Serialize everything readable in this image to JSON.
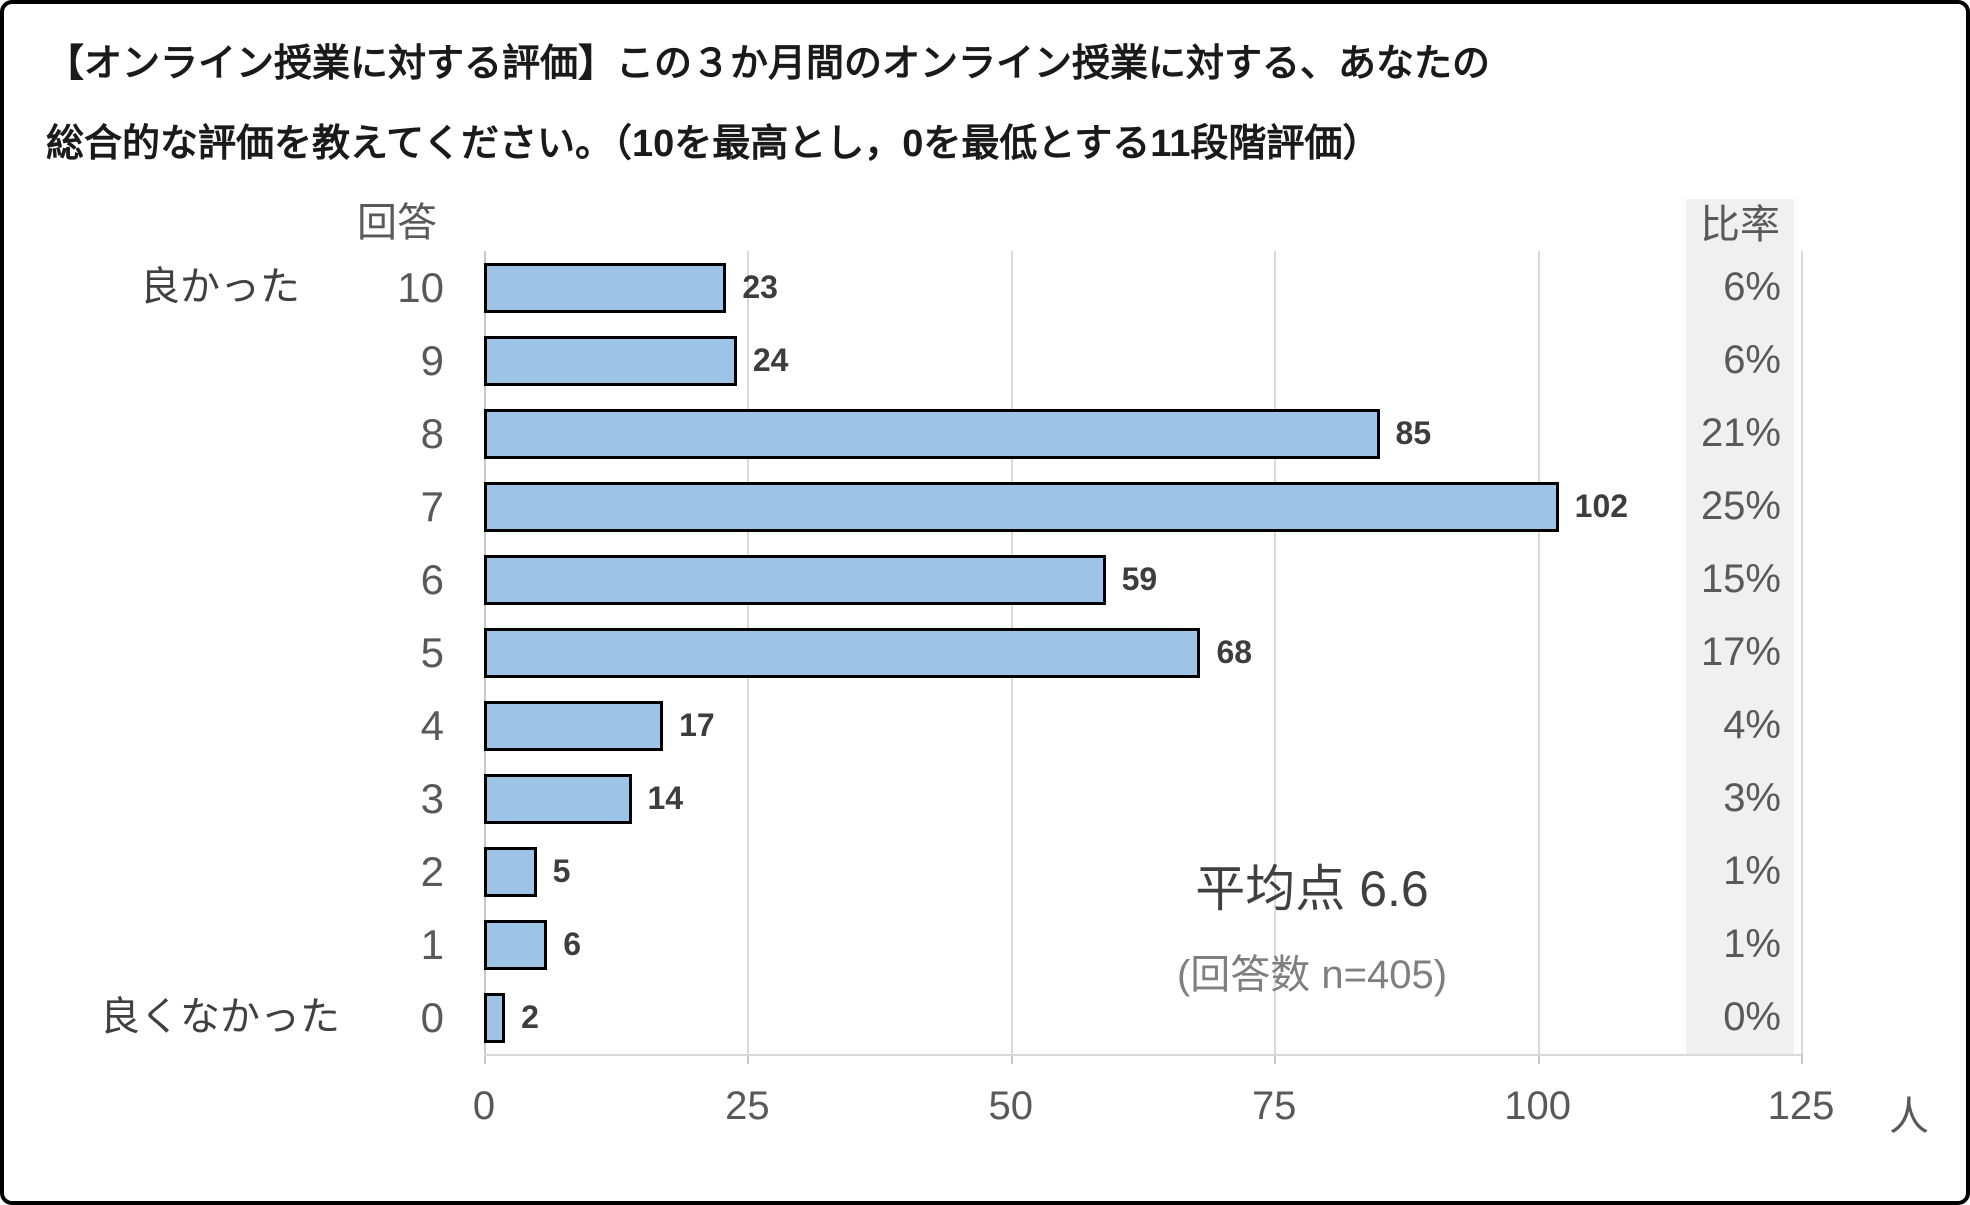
{
  "title": {
    "line1": "【オンライン授業に対する評価】この３か月間のオンライン授業に対する、あなたの",
    "line2": "総合的な評価を教えてください。（10を最高とし，0を最低とする11段階評価）"
  },
  "chart_data": {
    "type": "bar",
    "orientation": "horizontal",
    "title": "オンライン授業に対する評価（11段階評価）",
    "answer_header": "回答",
    "ratio_header": "比率",
    "top_axis_label": "良かった",
    "bottom_axis_label": "良くなかった",
    "categories": [
      "10",
      "9",
      "8",
      "7",
      "6",
      "5",
      "4",
      "3",
      "2",
      "1",
      "0"
    ],
    "values": [
      23,
      24,
      85,
      102,
      59,
      68,
      17,
      14,
      5,
      6,
      2
    ],
    "percentages": [
      "6%",
      "6%",
      "21%",
      "25%",
      "15%",
      "17%",
      "4%",
      "3%",
      "1%",
      "1%",
      "0%"
    ],
    "x_ticks": [
      0,
      25,
      50,
      75,
      100,
      125
    ],
    "xlim": [
      0,
      125
    ],
    "x_unit": "人",
    "grid": true,
    "legend": "none",
    "annotation": {
      "average_label": "平均点 6.6",
      "n_label": "(回答数 n=405)"
    },
    "bar_color": "#9dc3e6",
    "bar_border_color": "#000000"
  }
}
